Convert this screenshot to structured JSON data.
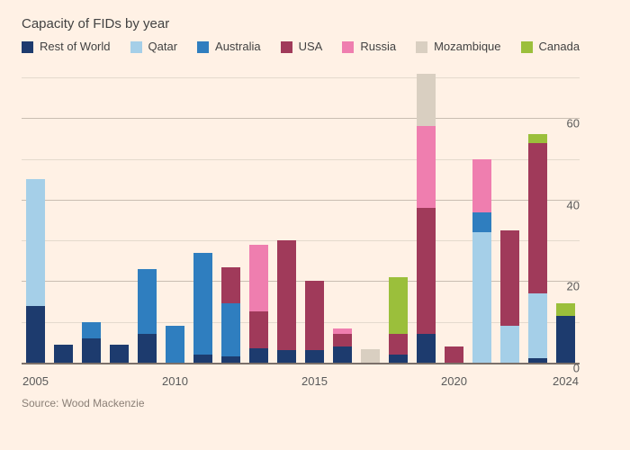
{
  "title": "Capacity of FIDs by year",
  "source": "Source: Wood Mackenzie",
  "chart": {
    "type": "stacked-bar",
    "background_color": "#fff1e5",
    "grid_major_color": "#c9beb2",
    "grid_minor_color": "#e4dacd",
    "baseline_color": "#7b7069",
    "text_color": "#424242",
    "ylim": [
      0,
      72
    ],
    "ytick_labels": [
      0,
      20,
      40,
      60
    ],
    "ytick_minor": [
      10,
      30,
      50,
      70
    ],
    "xtick_labels": [
      2005,
      2010,
      2015,
      2020,
      2024
    ],
    "bar_gap_ratio": 0.3,
    "series": [
      {
        "key": "rest",
        "label": "Rest of World",
        "color": "#1d3b6e"
      },
      {
        "key": "qatar",
        "label": "Qatar",
        "color": "#a5cfe8"
      },
      {
        "key": "australia",
        "label": "Australia",
        "color": "#2f7ebf"
      },
      {
        "key": "usa",
        "label": "USA",
        "color": "#a03a5a"
      },
      {
        "key": "russia",
        "label": "Russia",
        "color": "#ef7eaf"
      },
      {
        "key": "mozambique",
        "label": "Mozambique",
        "color": "#d9cfc1"
      },
      {
        "key": "canada",
        "label": "Canada",
        "color": "#9bbf3b"
      }
    ],
    "years": [
      2005,
      2006,
      2007,
      2008,
      2009,
      2010,
      2011,
      2012,
      2013,
      2014,
      2015,
      2016,
      2017,
      2018,
      2019,
      2020,
      2021,
      2022,
      2023,
      2024
    ],
    "data": [
      {
        "year": 2005,
        "rest": 14,
        "qatar": 31,
        "australia": 0,
        "usa": 0,
        "russia": 0,
        "mozambique": 0,
        "canada": 0
      },
      {
        "year": 2006,
        "rest": 4.5,
        "qatar": 0,
        "australia": 0,
        "usa": 0,
        "russia": 0,
        "mozambique": 0,
        "canada": 0
      },
      {
        "year": 2007,
        "rest": 6,
        "qatar": 0,
        "australia": 4,
        "usa": 0,
        "russia": 0,
        "mozambique": 0,
        "canada": 0
      },
      {
        "year": 2008,
        "rest": 4.5,
        "qatar": 0,
        "australia": 0,
        "usa": 0,
        "russia": 0,
        "mozambique": 0,
        "canada": 0
      },
      {
        "year": 2009,
        "rest": 7,
        "qatar": 0,
        "australia": 16,
        "usa": 0,
        "russia": 0,
        "mozambique": 0,
        "canada": 0
      },
      {
        "year": 2010,
        "rest": 0,
        "qatar": 0,
        "australia": 9,
        "usa": 0,
        "russia": 0,
        "mozambique": 0,
        "canada": 0
      },
      {
        "year": 2011,
        "rest": 2,
        "qatar": 0,
        "australia": 25,
        "usa": 0,
        "russia": 0,
        "mozambique": 0,
        "canada": 0
      },
      {
        "year": 2012,
        "rest": 1.5,
        "qatar": 0,
        "australia": 13,
        "usa": 9,
        "russia": 0,
        "mozambique": 0,
        "canada": 0
      },
      {
        "year": 2013,
        "rest": 3.5,
        "qatar": 0,
        "australia": 0,
        "usa": 9,
        "russia": 16.5,
        "mozambique": 0,
        "canada": 0
      },
      {
        "year": 2014,
        "rest": 3,
        "qatar": 0,
        "australia": 0,
        "usa": 27,
        "russia": 0,
        "mozambique": 0,
        "canada": 0
      },
      {
        "year": 2015,
        "rest": 3,
        "qatar": 0,
        "australia": 0,
        "usa": 17,
        "russia": 0,
        "mozambique": 0,
        "canada": 0
      },
      {
        "year": 2016,
        "rest": 4,
        "qatar": 0,
        "australia": 0,
        "usa": 3,
        "russia": 1.5,
        "mozambique": 0,
        "canada": 0
      },
      {
        "year": 2017,
        "rest": 0,
        "qatar": 0,
        "australia": 0,
        "usa": 0,
        "russia": 0,
        "mozambique": 3.4,
        "canada": 0
      },
      {
        "year": 2018,
        "rest": 2,
        "qatar": 0,
        "australia": 0,
        "usa": 5,
        "russia": 0,
        "mozambique": 0,
        "canada": 14
      },
      {
        "year": 2019,
        "rest": 7,
        "qatar": 0,
        "australia": 0,
        "usa": 31,
        "russia": 20,
        "mozambique": 13,
        "canada": 0
      },
      {
        "year": 2020,
        "rest": 0,
        "qatar": 0,
        "australia": 0,
        "usa": 4,
        "russia": 0,
        "mozambique": 0,
        "canada": 0
      },
      {
        "year": 2021,
        "rest": 0,
        "qatar": 32,
        "australia": 5,
        "usa": 0,
        "russia": 13,
        "mozambique": 0,
        "canada": 0
      },
      {
        "year": 2022,
        "rest": 0,
        "qatar": 9,
        "australia": 0,
        "usa": 23.5,
        "russia": 0,
        "mozambique": 0,
        "canada": 0
      },
      {
        "year": 2023,
        "rest": 1,
        "qatar": 16,
        "australia": 0,
        "usa": 37,
        "russia": 0,
        "mozambique": 0,
        "canada": 2.2
      },
      {
        "year": 2024,
        "rest": 11.5,
        "qatar": 0,
        "australia": 0,
        "usa": 0,
        "russia": 0,
        "mozambique": 0,
        "canada": 3
      }
    ]
  }
}
